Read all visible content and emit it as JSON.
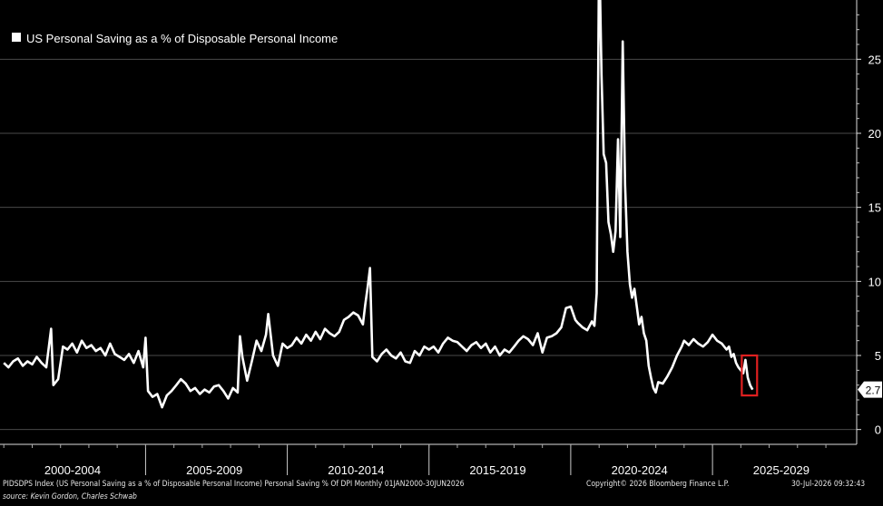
{
  "chart_data": {
    "type": "line",
    "title": "",
    "legend": {
      "label": "US Personal Saving as a % of Disposable Personal Income",
      "placement": "top-left"
    },
    "xlabel": "",
    "ylabel": "",
    "x_categories": [
      "2000-2004",
      "2005-2009",
      "2010-2014",
      "2015-2019",
      "2020-2024",
      "2025-2029"
    ],
    "ylim": [
      -1,
      29
    ],
    "yticks": [
      0,
      5,
      10,
      15,
      20,
      25
    ],
    "grid": true,
    "colors": {
      "background": "#000000",
      "line": "#ffffff",
      "grid": "#4a4a4a",
      "highlight_box": "#e02020",
      "last_label_bg": "#ffffff"
    },
    "last_value_label": "2.7",
    "highlight": {
      "from": "2026-03",
      "to": "2026-06",
      "y_range": [
        2.3,
        5.0
      ],
      "color": "#e02020"
    },
    "series": [
      {
        "name": "US Personal Saving as a % of Disposable Personal Income",
        "points": [
          [
            "2000-01",
            4.5
          ],
          [
            "2000-03",
            4.2
          ],
          [
            "2000-05",
            4.6
          ],
          [
            "2000-07",
            4.8
          ],
          [
            "2000-09",
            4.3
          ],
          [
            "2000-11",
            4.6
          ],
          [
            "2001-01",
            4.4
          ],
          [
            "2001-03",
            4.9
          ],
          [
            "2001-05",
            4.5
          ],
          [
            "2001-07",
            4.2
          ],
          [
            "2001-09",
            6.8
          ],
          [
            "2001-10",
            3.0
          ],
          [
            "2001-12",
            3.4
          ],
          [
            "2002-02",
            5.6
          ],
          [
            "2002-04",
            5.4
          ],
          [
            "2002-06",
            5.8
          ],
          [
            "2002-08",
            5.2
          ],
          [
            "2002-10",
            6.0
          ],
          [
            "2002-12",
            5.5
          ],
          [
            "2003-02",
            5.7
          ],
          [
            "2003-04",
            5.3
          ],
          [
            "2003-06",
            5.5
          ],
          [
            "2003-08",
            5.0
          ],
          [
            "2003-10",
            5.8
          ],
          [
            "2003-12",
            5.1
          ],
          [
            "2004-02",
            4.9
          ],
          [
            "2004-04",
            4.7
          ],
          [
            "2004-06",
            5.1
          ],
          [
            "2004-08",
            4.5
          ],
          [
            "2004-10",
            5.3
          ],
          [
            "2004-12",
            4.2
          ],
          [
            "2005-01",
            6.2
          ],
          [
            "2005-02",
            2.6
          ],
          [
            "2005-04",
            2.2
          ],
          [
            "2005-06",
            2.4
          ],
          [
            "2005-08",
            1.5
          ],
          [
            "2005-10",
            2.3
          ],
          [
            "2005-12",
            2.6
          ],
          [
            "2006-02",
            3.0
          ],
          [
            "2006-04",
            3.4
          ],
          [
            "2006-06",
            3.1
          ],
          [
            "2006-08",
            2.6
          ],
          [
            "2006-10",
            2.8
          ],
          [
            "2006-12",
            2.4
          ],
          [
            "2007-02",
            2.7
          ],
          [
            "2007-04",
            2.5
          ],
          [
            "2007-06",
            2.9
          ],
          [
            "2007-08",
            3.0
          ],
          [
            "2007-10",
            2.6
          ],
          [
            "2007-12",
            2.1
          ],
          [
            "2008-02",
            2.8
          ],
          [
            "2008-04",
            2.5
          ],
          [
            "2008-05",
            6.3
          ],
          [
            "2008-06",
            4.9
          ],
          [
            "2008-08",
            3.3
          ],
          [
            "2008-10",
            4.6
          ],
          [
            "2008-12",
            6.0
          ],
          [
            "2009-02",
            5.3
          ],
          [
            "2009-04",
            6.4
          ],
          [
            "2009-05",
            7.8
          ],
          [
            "2009-07",
            5.0
          ],
          [
            "2009-09",
            4.3
          ],
          [
            "2009-11",
            5.8
          ],
          [
            "2010-01",
            5.5
          ],
          [
            "2010-03",
            5.7
          ],
          [
            "2010-05",
            6.2
          ],
          [
            "2010-07",
            5.8
          ],
          [
            "2010-09",
            6.4
          ],
          [
            "2010-11",
            6.0
          ],
          [
            "2011-01",
            6.6
          ],
          [
            "2011-03",
            6.1
          ],
          [
            "2011-05",
            6.8
          ],
          [
            "2011-07",
            6.5
          ],
          [
            "2011-09",
            6.3
          ],
          [
            "2011-11",
            6.6
          ],
          [
            "2012-01",
            7.4
          ],
          [
            "2012-03",
            7.6
          ],
          [
            "2012-05",
            7.9
          ],
          [
            "2012-07",
            7.7
          ],
          [
            "2012-09",
            7.1
          ],
          [
            "2012-10",
            8.4
          ],
          [
            "2012-11",
            9.6
          ],
          [
            "2012-12",
            10.9
          ],
          [
            "2013-01",
            4.9
          ],
          [
            "2013-03",
            4.6
          ],
          [
            "2013-05",
            5.1
          ],
          [
            "2013-07",
            5.4
          ],
          [
            "2013-09",
            5.0
          ],
          [
            "2013-11",
            4.8
          ],
          [
            "2014-01",
            5.2
          ],
          [
            "2014-03",
            4.6
          ],
          [
            "2014-05",
            4.5
          ],
          [
            "2014-07",
            5.3
          ],
          [
            "2014-09",
            5.0
          ],
          [
            "2014-11",
            5.6
          ],
          [
            "2015-01",
            5.4
          ],
          [
            "2015-03",
            5.6
          ],
          [
            "2015-05",
            5.2
          ],
          [
            "2015-07",
            5.8
          ],
          [
            "2015-09",
            6.2
          ],
          [
            "2015-11",
            6.0
          ],
          [
            "2016-01",
            5.9
          ],
          [
            "2016-03",
            5.6
          ],
          [
            "2016-05",
            5.3
          ],
          [
            "2016-07",
            5.7
          ],
          [
            "2016-09",
            5.9
          ],
          [
            "2016-11",
            5.5
          ],
          [
            "2017-01",
            5.8
          ],
          [
            "2017-03",
            5.2
          ],
          [
            "2017-05",
            5.6
          ],
          [
            "2017-07",
            5.0
          ],
          [
            "2017-09",
            5.4
          ],
          [
            "2017-11",
            5.2
          ],
          [
            "2018-01",
            5.6
          ],
          [
            "2018-03",
            6.0
          ],
          [
            "2018-05",
            6.3
          ],
          [
            "2018-07",
            6.1
          ],
          [
            "2018-09",
            5.7
          ],
          [
            "2018-11",
            6.5
          ],
          [
            "2019-01",
            5.2
          ],
          [
            "2019-03",
            6.2
          ],
          [
            "2019-05",
            6.3
          ],
          [
            "2019-07",
            6.5
          ],
          [
            "2019-09",
            6.9
          ],
          [
            "2019-11",
            8.2
          ],
          [
            "2020-01",
            8.3
          ],
          [
            "2020-03",
            7.4
          ],
          [
            "2020-04",
            7.2
          ],
          [
            "2020-06",
            6.9
          ],
          [
            "2020-08",
            6.7
          ],
          [
            "2020-10",
            7.3
          ],
          [
            "2020-11",
            7.0
          ],
          [
            "2020-12",
            9.2
          ],
          [
            "2021-01",
            33.0
          ],
          [
            "2021-02",
            24.0
          ],
          [
            "2021-03",
            18.6
          ],
          [
            "2021-04",
            18.0
          ],
          [
            "2021-05",
            14.0
          ],
          [
            "2021-06",
            13.2
          ],
          [
            "2021-07",
            12.0
          ],
          [
            "2021-08",
            13.4
          ],
          [
            "2021-09",
            19.6
          ],
          [
            "2021-10",
            13.0
          ],
          [
            "2021-11",
            26.2
          ],
          [
            "2021-12",
            16.5
          ],
          [
            "2022-01",
            12.0
          ],
          [
            "2022-02",
            9.8
          ],
          [
            "2022-03",
            8.9
          ],
          [
            "2022-04",
            9.5
          ],
          [
            "2022-05",
            8.3
          ],
          [
            "2022-06",
            7.1
          ],
          [
            "2022-07",
            7.6
          ],
          [
            "2022-08",
            6.5
          ],
          [
            "2022-09",
            6.0
          ],
          [
            "2022-10",
            4.3
          ],
          [
            "2022-11",
            3.5
          ],
          [
            "2022-12",
            2.8
          ],
          [
            "2023-01",
            2.5
          ],
          [
            "2023-02",
            3.2
          ],
          [
            "2023-04",
            3.1
          ],
          [
            "2023-06",
            3.6
          ],
          [
            "2023-08",
            4.2
          ],
          [
            "2023-10",
            5.0
          ],
          [
            "2023-12",
            5.6
          ],
          [
            "2024-01",
            6.0
          ],
          [
            "2024-03",
            5.7
          ],
          [
            "2024-05",
            6.1
          ],
          [
            "2024-07",
            5.8
          ],
          [
            "2024-09",
            5.6
          ],
          [
            "2024-11",
            5.9
          ],
          [
            "2025-01",
            6.4
          ],
          [
            "2025-03",
            6.0
          ],
          [
            "2025-05",
            5.8
          ],
          [
            "2025-07",
            5.4
          ],
          [
            "2025-08",
            5.6
          ],
          [
            "2025-09",
            4.9
          ],
          [
            "2025-10",
            5.1
          ],
          [
            "2025-11",
            4.5
          ],
          [
            "2025-12",
            4.2
          ],
          [
            "2026-01",
            4.0
          ],
          [
            "2026-02",
            3.8
          ],
          [
            "2026-03",
            4.7
          ],
          [
            "2026-04",
            3.5
          ],
          [
            "2026-05",
            3.0
          ],
          [
            "2026-06",
            2.7
          ]
        ]
      }
    ]
  },
  "footer": {
    "index_description": "PIDSDPS Index (US Personal Saving as a % of Disposable Personal Income) Personal Saving % Of DPI Monthly 01JAN2000-30JUN2026",
    "copyright": "Copyright© 2026 Bloomberg Finance L.P.",
    "timestamp": "30-Jul-2026 09:32:43",
    "source": "source: Kevin Gordon, Charles Schwab"
  }
}
